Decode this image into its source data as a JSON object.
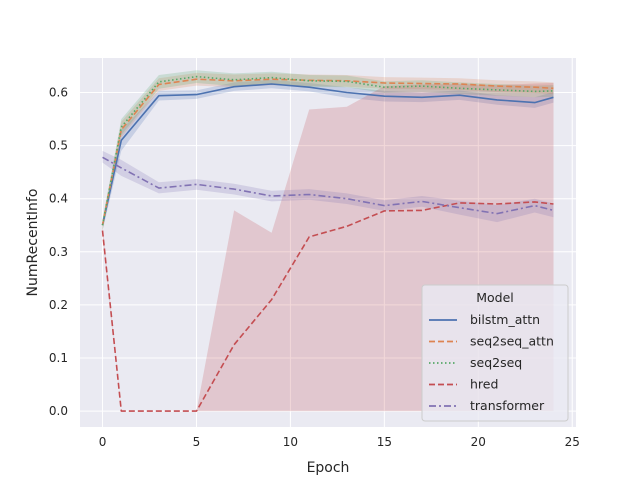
{
  "chart_data": {
    "type": "line",
    "title": "",
    "xlabel": "Epoch",
    "ylabel": "NumRecentInfo",
    "xlim": [
      -1.2,
      25.2
    ],
    "ylim": [
      -0.03,
      0.665
    ],
    "xticks": [
      0,
      5,
      10,
      15,
      20,
      25
    ],
    "xtick_labels": [
      "0",
      "5",
      "10",
      "15",
      "20",
      "25"
    ],
    "yticks": [
      0.0,
      0.1,
      0.2,
      0.3,
      0.4,
      0.5,
      0.6
    ],
    "ytick_labels": [
      "0.0",
      "0.1",
      "0.2",
      "0.3",
      "0.4",
      "0.5",
      "0.6"
    ],
    "grid": true,
    "legend": {
      "title": "Model",
      "location": "lower-right"
    },
    "series": [
      {
        "name": "bilstm_attn",
        "color": "#4c72b0",
        "dash": "solid",
        "x": [
          0,
          1,
          3,
          5,
          7,
          9,
          11,
          13,
          15,
          17,
          19,
          21,
          23,
          24
        ],
        "y": [
          0.35,
          0.51,
          0.594,
          0.596,
          0.611,
          0.616,
          0.61,
          0.6,
          0.593,
          0.591,
          0.595,
          0.586,
          0.581,
          0.591
        ],
        "lower": [
          0.34,
          0.49,
          0.585,
          0.588,
          0.603,
          0.608,
          0.602,
          0.59,
          0.583,
          0.582,
          0.586,
          0.577,
          0.571,
          0.581
        ],
        "upper": [
          0.36,
          0.53,
          0.603,
          0.604,
          0.619,
          0.624,
          0.618,
          0.61,
          0.603,
          0.6,
          0.604,
          0.595,
          0.591,
          0.601
        ]
      },
      {
        "name": "seq2seq_attn",
        "color": "#dd8452",
        "dash": "dashed",
        "x": [
          0,
          1,
          3,
          5,
          7,
          9,
          11,
          13,
          15,
          17,
          19,
          21,
          23,
          24
        ],
        "y": [
          0.35,
          0.53,
          0.615,
          0.625,
          0.622,
          0.625,
          0.623,
          0.622,
          0.618,
          0.617,
          0.616,
          0.612,
          0.61,
          0.608
        ],
        "lower": [
          0.34,
          0.515,
          0.603,
          0.613,
          0.61,
          0.614,
          0.612,
          0.611,
          0.607,
          0.606,
          0.605,
          0.601,
          0.599,
          0.597
        ],
        "upper": [
          0.36,
          0.545,
          0.627,
          0.637,
          0.634,
          0.636,
          0.634,
          0.633,
          0.629,
          0.628,
          0.627,
          0.623,
          0.621,
          0.619
        ]
      },
      {
        "name": "seq2seq",
        "color": "#55a868",
        "dash": "dotted",
        "x": [
          0,
          1,
          3,
          5,
          7,
          9,
          11,
          13,
          15,
          17,
          19,
          21,
          23,
          24
        ],
        "y": [
          0.35,
          0.535,
          0.62,
          0.63,
          0.624,
          0.628,
          0.622,
          0.621,
          0.61,
          0.612,
          0.608,
          0.605,
          0.602,
          0.603
        ],
        "lower": [
          0.34,
          0.52,
          0.607,
          0.618,
          0.612,
          0.617,
          0.611,
          0.61,
          0.599,
          0.601,
          0.597,
          0.594,
          0.591,
          0.592
        ],
        "upper": [
          0.36,
          0.55,
          0.633,
          0.642,
          0.636,
          0.639,
          0.633,
          0.632,
          0.621,
          0.623,
          0.619,
          0.616,
          0.613,
          0.614
        ]
      },
      {
        "name": "hred",
        "color": "#c44e52",
        "dash": "dashed",
        "x": [
          0,
          1,
          3,
          5,
          7,
          9,
          11,
          13,
          15,
          17,
          19,
          21,
          23,
          24
        ],
        "y": [
          0.34,
          0.0,
          0.0,
          0.0,
          0.125,
          0.21,
          0.328,
          0.348,
          0.377,
          0.378,
          0.392,
          0.39,
          0.394,
          0.39
        ],
        "lower": [
          0.33,
          0.0,
          0.0,
          0.0,
          0.0,
          0.0,
          0.0,
          0.0,
          0.0,
          0.0,
          0.0,
          0.0,
          0.0,
          0.0
        ],
        "upper": [
          0.35,
          0.0,
          0.0,
          0.0,
          0.378,
          0.336,
          0.568,
          0.573,
          0.612,
          0.615,
          0.616,
          0.614,
          0.617,
          0.618
        ]
      },
      {
        "name": "transformer",
        "color": "#8172b3",
        "dash": "dashdot",
        "x": [
          0,
          1,
          3,
          5,
          7,
          9,
          11,
          13,
          15,
          17,
          19,
          21,
          23,
          24
        ],
        "y": [
          0.478,
          0.458,
          0.42,
          0.427,
          0.418,
          0.405,
          0.408,
          0.4,
          0.387,
          0.395,
          0.383,
          0.372,
          0.387,
          0.378
        ],
        "lower": [
          0.468,
          0.443,
          0.41,
          0.417,
          0.408,
          0.395,
          0.398,
          0.39,
          0.377,
          0.385,
          0.37,
          0.356,
          0.374,
          0.365
        ],
        "upper": [
          0.49,
          0.473,
          0.431,
          0.437,
          0.428,
          0.415,
          0.418,
          0.41,
          0.397,
          0.405,
          0.396,
          0.388,
          0.4,
          0.391
        ]
      }
    ]
  }
}
